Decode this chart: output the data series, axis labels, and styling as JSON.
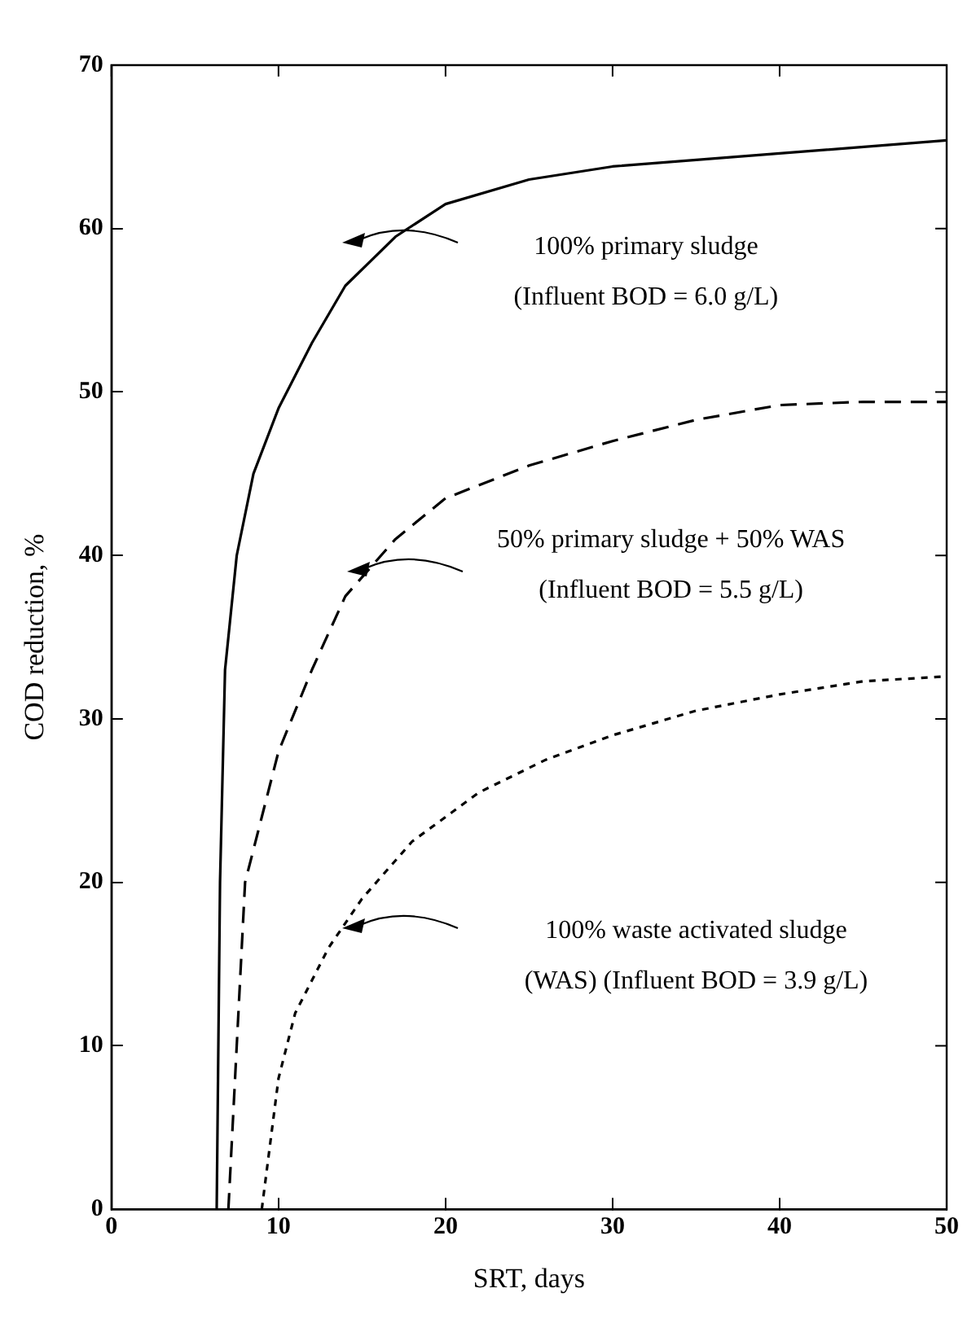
{
  "chart_data": {
    "type": "line",
    "xlabel": "SRT, days",
    "ylabel": "COD reduction, %",
    "xlim": [
      0,
      50
    ],
    "xticks": [
      0,
      10,
      20,
      30,
      40,
      50
    ],
    "ylim": [
      0,
      70
    ],
    "yticks": [
      0,
      10,
      20,
      30,
      40,
      50,
      60,
      70
    ],
    "grid": false,
    "legend": false,
    "marker": "none",
    "series": [
      {
        "color": "#000000",
        "line_style": "solid",
        "x": [
          6.3,
          6.5,
          6.8,
          7.5,
          8.5,
          10,
          12,
          14,
          17,
          20,
          25,
          30,
          40,
          50
        ],
        "values": [
          0,
          20,
          33,
          40,
          45,
          49,
          53,
          56.5,
          59.5,
          61.5,
          63,
          63.8,
          64.6,
          65.4
        ]
      },
      {
        "color": "#000000",
        "line_style": "dashed",
        "x": [
          7,
          8,
          10,
          12,
          14,
          17,
          20,
          25,
          30,
          35,
          40,
          45,
          50
        ],
        "values": [
          0,
          20,
          28,
          33,
          37.5,
          41,
          43.5,
          45.5,
          47,
          48.3,
          49.2,
          49.4,
          49.4
        ]
      },
      {
        "color": "#000000",
        "line_style": "dotted",
        "x": [
          9,
          10,
          11,
          13,
          15,
          18,
          22,
          26,
          30,
          35,
          40,
          45,
          50
        ],
        "values": [
          0,
          8,
          12,
          16,
          19,
          22.5,
          25.5,
          27.5,
          29,
          30.5,
          31.5,
          32.3,
          32.6
        ]
      }
    ],
    "annotations": [
      "100% primary sludge\n(Influent BOD = 6.0 g/L)",
      "50% primary sludge + 50% WAS\n(Influent BOD = 5.5 g/L)",
      "100% waste activated sludge\n(WAS) (Influent BOD = 3.9 g/L)"
    ]
  }
}
